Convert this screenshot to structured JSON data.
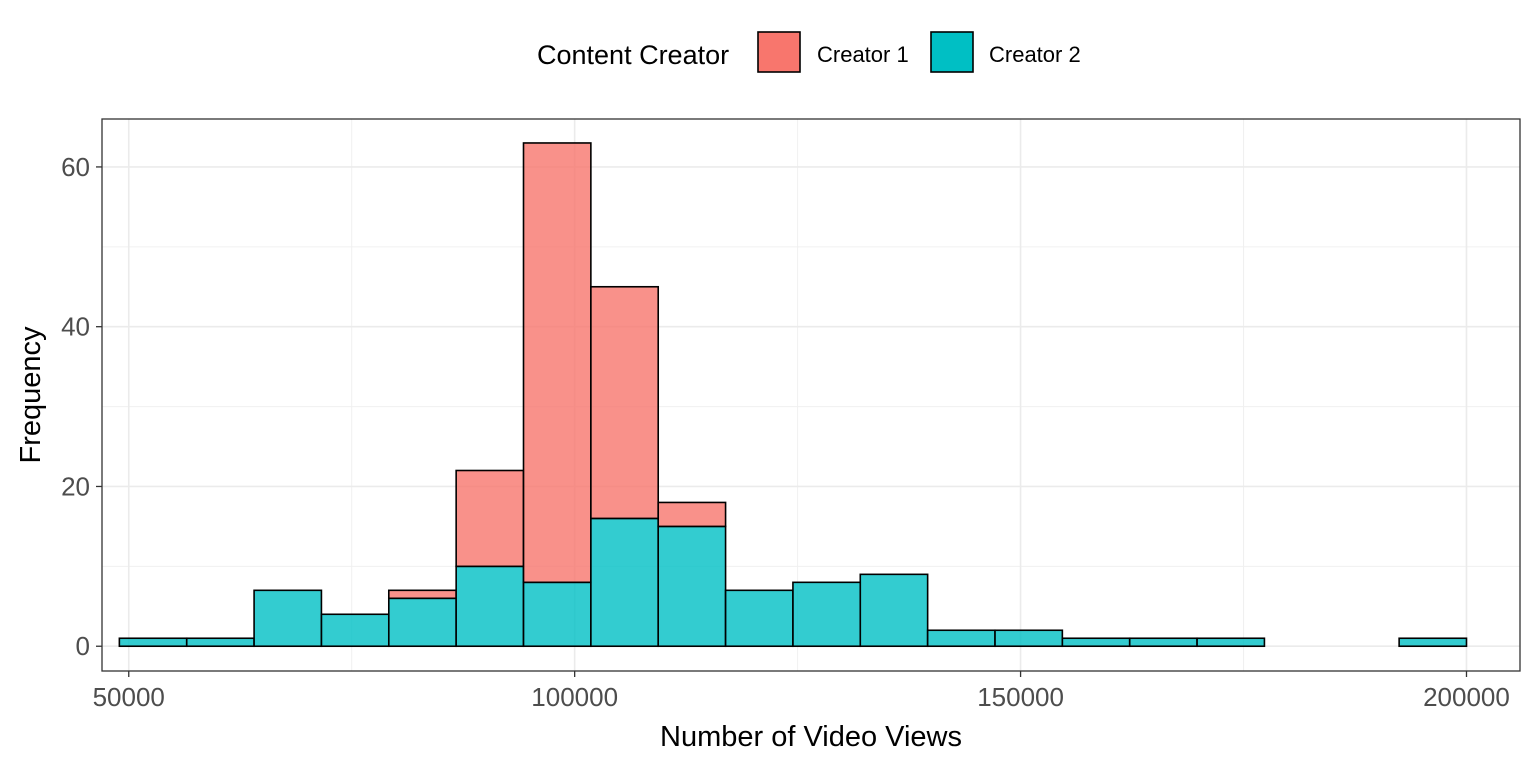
{
  "chart_data": {
    "type": "bar",
    "subtype": "stacked-histogram",
    "title": "",
    "xlabel": "Number of Video Views",
    "ylabel": "Frequency",
    "legend": {
      "title": "Content Creator",
      "placement": "top",
      "entries": [
        "Creator 1",
        "Creator 2"
      ]
    },
    "xlim": [
      47000,
      206000
    ],
    "ylim": [
      -3.1,
      66
    ],
    "x_ticks": [
      50000,
      100000,
      150000,
      200000
    ],
    "x_tick_labels": [
      "50000",
      "100000",
      "150000",
      "200000"
    ],
    "y_ticks": [
      0,
      20,
      40,
      60
    ],
    "y_tick_labels": [
      "0",
      "20",
      "40",
      "60"
    ],
    "grid": true,
    "bins": [
      [
        48947,
        56500
      ],
      [
        56500,
        64053
      ],
      [
        64053,
        71605
      ],
      [
        71605,
        79158
      ],
      [
        79158,
        86711
      ],
      [
        86711,
        94263
      ],
      [
        94263,
        101816
      ],
      [
        101816,
        109368
      ],
      [
        109368,
        116921
      ],
      [
        116921,
        124474
      ],
      [
        124474,
        132026
      ],
      [
        132026,
        139579
      ],
      [
        139579,
        147132
      ],
      [
        147132,
        154684
      ],
      [
        154684,
        162237
      ],
      [
        162237,
        169789
      ],
      [
        169789,
        177342
      ],
      [
        177342,
        184895
      ],
      [
        184895,
        192447
      ],
      [
        192447,
        200000
      ]
    ],
    "series": [
      {
        "name": "Creator 1",
        "color": "#F8766D",
        "values": [
          0,
          0,
          0,
          0,
          1,
          12,
          55,
          29,
          3,
          0,
          0,
          0,
          0,
          0,
          0,
          0,
          0,
          0,
          0,
          0
        ]
      },
      {
        "name": "Creator 2",
        "color": "#00BFC4",
        "values": [
          1,
          1,
          7,
          4,
          6,
          10,
          8,
          16,
          15,
          7,
          8,
          9,
          2,
          2,
          1,
          1,
          1,
          0,
          0,
          1
        ]
      }
    ]
  }
}
